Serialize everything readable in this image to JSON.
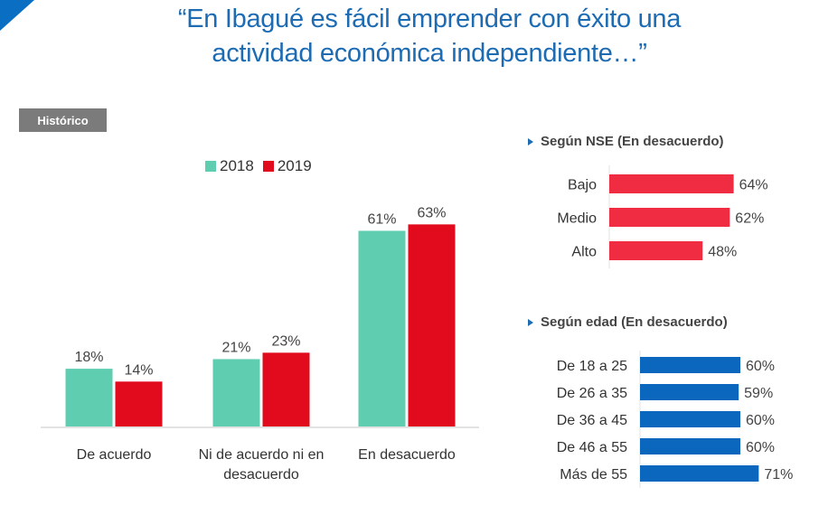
{
  "title": "“En Ibagué es fácil emprender con éxito una actividad económica independiente…”",
  "title_lines": [
    "“En Ibagué es fácil emprender con éxito una",
    "actividad económica independiente…”"
  ],
  "badge": "Histórico",
  "colors": {
    "c2018": "#5ecdb0",
    "c2019": "#e20b1e",
    "nse": "#ef2c42",
    "edad": "#0a67bd",
    "title": "#1d6bb3"
  },
  "chart_data": [
    {
      "type": "bar",
      "title": "Histórico",
      "categories": [
        "De acuerdo",
        "Ni de acuerdo ni en desacuerdo",
        "En desacuerdo"
      ],
      "category_lines": [
        [
          "De acuerdo"
        ],
        [
          "Ni de acuerdo ni en",
          "desacuerdo"
        ],
        [
          "En desacuerdo"
        ]
      ],
      "series": [
        {
          "name": "2018",
          "values": [
            18,
            21,
            61
          ],
          "labels": [
            "18%",
            "21%",
            "61%"
          ]
        },
        {
          "name": "2019",
          "values": [
            14,
            23,
            63
          ],
          "labels": [
            "14%",
            "23%",
            "63%"
          ]
        }
      ],
      "legend": "top-center",
      "xlabel": "",
      "ylabel": "",
      "ylim": [
        0,
        100
      ],
      "grid": false
    },
    {
      "type": "bar",
      "orientation": "horizontal",
      "title": "Según NSE (En desacuerdo)",
      "categories": [
        "Bajo",
        "Medio",
        "Alto"
      ],
      "values": [
        64,
        62,
        48
      ],
      "labels": [
        "64%",
        "62%",
        "48%"
      ],
      "xlim": [
        0,
        100
      ]
    },
    {
      "type": "bar",
      "orientation": "horizontal",
      "title": "Según edad (En desacuerdo)",
      "categories": [
        "De 18 a 25",
        "De 26 a 35",
        "De 36 a 45",
        "De 46 a 55",
        "Más de 55"
      ],
      "values": [
        60,
        59,
        60,
        60,
        71
      ],
      "labels": [
        "60%",
        "59%",
        "60%",
        "60%",
        "71%"
      ],
      "xlim": [
        0,
        100
      ]
    }
  ]
}
